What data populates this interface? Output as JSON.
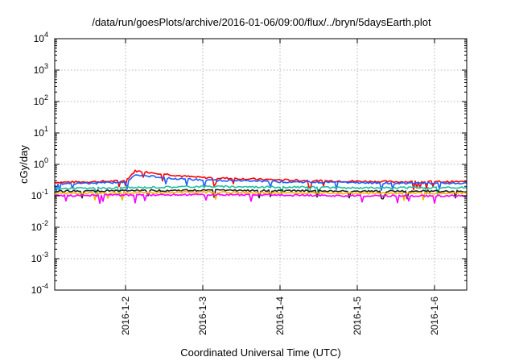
{
  "chart_data": {
    "type": "line",
    "title": "/data/run/goesPlots/archive/2016-01-06/09:00/flux/../bryn/5daysEarth.plot",
    "xlabel": "Coordinated Universal Time (UTC)",
    "ylabel": "cGy/day",
    "yscale": "log",
    "ylim": [
      0.0001,
      10000
    ],
    "ytick_labels": [
      "10-4",
      "10-3",
      "10-2",
      "10-1",
      "100",
      "101",
      "102",
      "103",
      "104"
    ],
    "xlim": [
      "2016-01-01T02:00",
      "2016-01-06T10:00"
    ],
    "xtick_labels": [
      "2016-1-2",
      "2016-1-3",
      "2016-1-4",
      "2016-1-5",
      "2016-1-6"
    ],
    "xticks": [
      "2016-01-02",
      "2016-01-03",
      "2016-01-04",
      "2016-01-05",
      "2016-01-06"
    ],
    "grid": true,
    "legend": "none",
    "series": [
      {
        "color": "#ff0000",
        "x": [
          "2016-01-01T02:00",
          "2016-01-01T14:00",
          "2016-01-02T00:00",
          "2016-01-02T03:00",
          "2016-01-02T06:00",
          "2016-01-02T12:00",
          "2016-01-02T18:00",
          "2016-01-03T00:00",
          "2016-01-03T12:00",
          "2016-01-04T00:00",
          "2016-01-04T12:00",
          "2016-01-05T00:00",
          "2016-01-05T12:00",
          "2016-01-06T00:00",
          "2016-01-06T10:00"
        ],
        "y": [
          0.27,
          0.28,
          0.3,
          0.62,
          0.58,
          0.5,
          0.42,
          0.38,
          0.35,
          0.32,
          0.3,
          0.29,
          0.28,
          0.28,
          0.28
        ]
      },
      {
        "color": "#1f5fff",
        "x": [
          "2016-01-01T02:00",
          "2016-01-01T14:00",
          "2016-01-02T00:00",
          "2016-01-02T03:00",
          "2016-01-02T06:00",
          "2016-01-02T12:00",
          "2016-01-02T18:00",
          "2016-01-03T00:00",
          "2016-01-03T12:00",
          "2016-01-04T00:00",
          "2016-01-04T12:00",
          "2016-01-05T00:00",
          "2016-01-05T12:00",
          "2016-01-06T00:00",
          "2016-01-06T10:00"
        ],
        "y": [
          0.24,
          0.25,
          0.27,
          0.45,
          0.43,
          0.38,
          0.34,
          0.32,
          0.3,
          0.28,
          0.27,
          0.26,
          0.25,
          0.25,
          0.25
        ]
      },
      {
        "color": "#20c0a0",
        "x": [
          "2016-01-01T02:00",
          "2016-01-02T00:00",
          "2016-01-03T00:00",
          "2016-01-04T00:00",
          "2016-01-05T00:00",
          "2016-01-06T00:00",
          "2016-01-06T10:00"
        ],
        "y": [
          0.17,
          0.18,
          0.2,
          0.19,
          0.18,
          0.18,
          0.18
        ]
      },
      {
        "color": "#202020",
        "x": [
          "2016-01-01T02:00",
          "2016-01-02T00:00",
          "2016-01-03T00:00",
          "2016-01-04T00:00",
          "2016-01-05T00:00",
          "2016-01-06T00:00",
          "2016-01-06T10:00"
        ],
        "y": [
          0.14,
          0.145,
          0.15,
          0.145,
          0.14,
          0.14,
          0.14
        ]
      },
      {
        "color": "#ffb000",
        "x": [
          "2016-01-01T02:00",
          "2016-01-02T00:00",
          "2016-01-03T00:00",
          "2016-01-04T00:00",
          "2016-01-05T00:00",
          "2016-01-06T00:00",
          "2016-01-06T10:00"
        ],
        "y": [
          0.12,
          0.125,
          0.13,
          0.125,
          0.12,
          0.12,
          0.12
        ]
      },
      {
        "color": "#ff00ff",
        "x": [
          "2016-01-01T02:00",
          "2016-01-02T00:00",
          "2016-01-03T00:00",
          "2016-01-04T00:00",
          "2016-01-05T00:00",
          "2016-01-06T00:00",
          "2016-01-06T10:00"
        ],
        "y": [
          0.1,
          0.105,
          0.11,
          0.105,
          0.1,
          0.1,
          0.1
        ]
      }
    ]
  }
}
